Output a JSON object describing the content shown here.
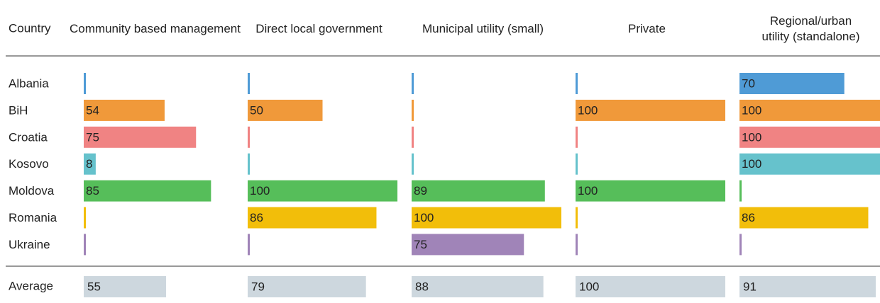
{
  "chart_data": {
    "type": "bar",
    "category_header": "Country",
    "categories": [
      "Albania",
      "BiH",
      "Croatia",
      "Kosovo",
      "Moldova",
      "Romania",
      "Ukraine"
    ],
    "colors": [
      "#4f9bd6",
      "#f0993a",
      "#f08383",
      "#66c2cc",
      "#56be5a",
      "#f2be0a",
      "#a084b8"
    ],
    "xlim": [
      0,
      100
    ],
    "series": [
      {
        "name": "Community based management",
        "values": [
          null,
          54,
          75,
          8,
          85,
          null,
          null
        ]
      },
      {
        "name": "Direct local government",
        "values": [
          null,
          50,
          null,
          null,
          100,
          86,
          null
        ]
      },
      {
        "name": "Municipal utility (small)",
        "values": [
          null,
          null,
          null,
          null,
          89,
          100,
          75
        ]
      },
      {
        "name": "Private",
        "values": [
          null,
          100,
          null,
          null,
          100,
          null,
          null
        ]
      },
      {
        "name": "Regional/urban utility (standalone)",
        "values": [
          70,
          100,
          100,
          100,
          null,
          86,
          null
        ]
      }
    ],
    "average": {
      "label": "Average",
      "color": "#cdd7de",
      "values": [
        55,
        79,
        88,
        100,
        91
      ]
    }
  }
}
